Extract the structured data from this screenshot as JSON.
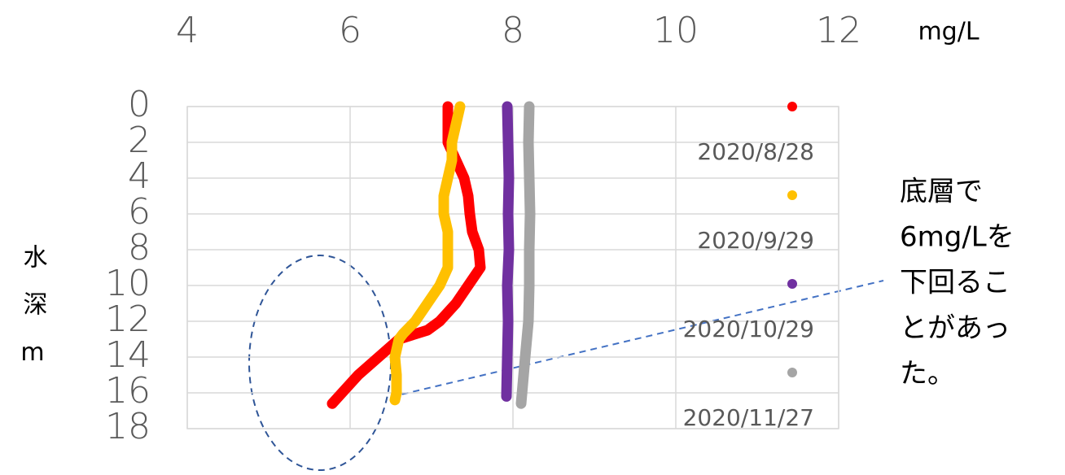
{
  "chart_data": {
    "type": "line",
    "x_label": "mg/L",
    "y_label": "水深m",
    "xlim": [
      4,
      12
    ],
    "xticks": [
      4,
      6,
      8,
      10,
      12
    ],
    "ylim": [
      0,
      18
    ],
    "yticks": [
      0,
      2,
      4,
      6,
      8,
      10,
      12,
      14,
      16,
      18
    ],
    "y_inverted": true,
    "x_axis_top": true,
    "grid": true,
    "series": [
      {
        "name": "2020/8/28",
        "color": "#ff0000",
        "x": [
          7.2,
          7.2,
          7.2,
          7.3,
          7.4,
          7.45,
          7.47,
          7.5,
          7.58,
          7.6,
          7.45,
          7.3,
          7.1,
          6.95,
          6.6,
          6.35,
          6.1,
          5.9,
          5.78
        ],
        "y": [
          0,
          1,
          2,
          3,
          4,
          5,
          6,
          7,
          8,
          9,
          10,
          11,
          12,
          12.5,
          13,
          14,
          15,
          16,
          16.6
        ]
      },
      {
        "name": "2020/9/29",
        "color": "#ffc000",
        "x": [
          7.35,
          7.3,
          7.25,
          7.25,
          7.2,
          7.15,
          7.15,
          7.2,
          7.2,
          7.2,
          7.1,
          6.95,
          6.8,
          6.65,
          6.6,
          6.55,
          6.57,
          6.57,
          6.55
        ],
        "y": [
          0,
          1,
          2,
          3,
          4,
          5,
          6,
          7,
          8,
          9,
          10,
          11,
          12,
          12.7,
          13,
          14,
          15,
          16,
          16.4
        ]
      },
      {
        "name": "2020/10/29",
        "color": "#7030a0",
        "x": [
          7.93,
          7.94,
          7.95,
          7.94,
          7.95,
          7.93,
          7.94,
          7.93,
          7.92
        ],
        "y": [
          0,
          2,
          4,
          6,
          8,
          10,
          12,
          14,
          16.2
        ]
      },
      {
        "name": "2020/11/27",
        "color": "#a5a5a5",
        "x": [
          8.2,
          8.19,
          8.2,
          8.21,
          8.2,
          8.2,
          8.19,
          8.15,
          8.1
        ],
        "y": [
          0,
          2,
          4,
          6,
          8,
          10,
          12,
          14,
          16.6
        ]
      }
    ],
    "annotation": [
      "底層で",
      "6mg/Lを",
      "下回るこ",
      "とがあっ",
      "た。"
    ]
  }
}
